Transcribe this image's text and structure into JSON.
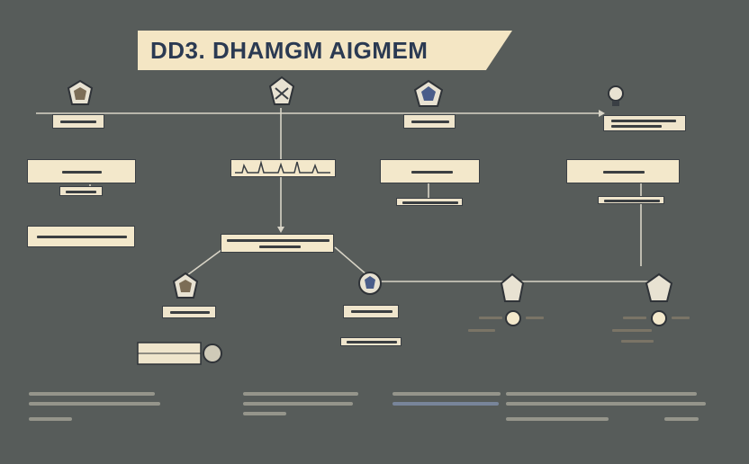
{
  "title": "DD3. DHAMGM AIGMEM",
  "colors": {
    "background": "#575c5a",
    "banner": "#f4e6c4",
    "banner_text": "#2b3a52",
    "box": "#f3e8cb",
    "connector": "#d8d4c6",
    "accent_blue": "#4a5d8a"
  },
  "icons": [
    "shield-node-icon",
    "shield-node-icon",
    "shield-node-icon",
    "bulb-node-icon",
    "shield-node-icon",
    "shield-node-icon",
    "gear-node-icon",
    "gear-node-icon",
    "server-icon"
  ]
}
